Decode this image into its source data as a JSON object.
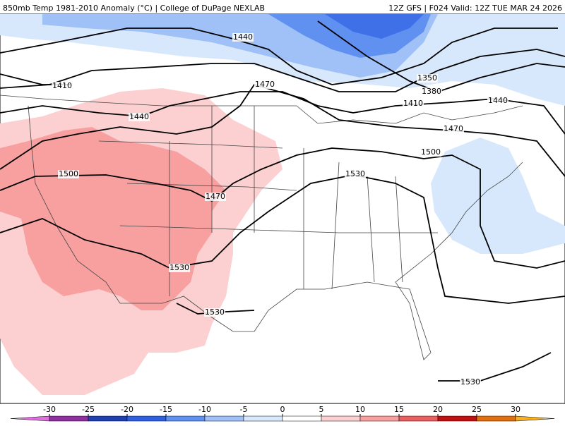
{
  "header": {
    "left": "850mb Temp 1981-2010 Anomaly (°C) | College of DuPage NEXLAB",
    "right": "12Z GFS | F024 Valid: 12Z TUE MAR 24 2026"
  },
  "contour_labels": [
    1440,
    1410,
    1470,
    1440,
    1350,
    1380,
    1410,
    1440,
    1470,
    1500,
    1500,
    1530,
    1470,
    1530,
    1530,
    1530
  ],
  "colorbar": {
    "lim": [
      -35,
      35
    ],
    "ticks": [
      -30,
      -25,
      -20,
      -15,
      -10,
      -5,
      0,
      5,
      10,
      15,
      20,
      25,
      30
    ],
    "colors": [
      "#e070e0",
      "#9030a0",
      "#2040b0",
      "#3060e0",
      "#6090f0",
      "#a0c0f8",
      "#d8e8fc",
      "#ffffff",
      "#fcd0d0",
      "#f8a0a0",
      "#e86060",
      "#c01010",
      "#e07010",
      "#f8b020"
    ]
  }
}
